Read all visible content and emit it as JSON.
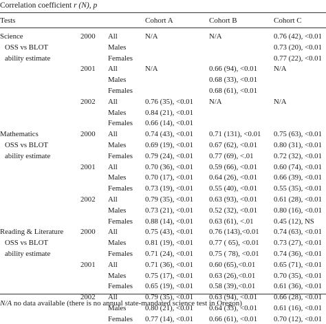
{
  "caption": {
    "prefix": "Correlation coefficient ",
    "symbols": "r (N), p"
  },
  "header": {
    "tests": "Tests",
    "cohort_a": "Cohort A",
    "cohort_b": "Cohort B",
    "cohort_c": "Cohort C"
  },
  "subjects": [
    {
      "lines": [
        "Science",
        "OSS vs BLOT",
        "ability estimate"
      ],
      "years": [
        {
          "year": "2000",
          "rows": [
            {
              "group": "All",
              "a": "N/A",
              "b": "N/A",
              "c": "0.76 (42), <0.01"
            },
            {
              "group": "Males",
              "a": "",
              "b": "",
              "c": "0.73 (20), <0.01"
            },
            {
              "group": "Females",
              "a": "",
              "b": "",
              "c": "0.77 (22), <0.01"
            }
          ]
        },
        {
          "year": "2001",
          "rows": [
            {
              "group": "All",
              "a": "N/A",
              "b": "0.66 (94), <0.01",
              "c": "N/A"
            },
            {
              "group": "Males",
              "a": "",
              "b": "0.68 (33), <0.01",
              "c": ""
            },
            {
              "group": "Females",
              "a": "",
              "b": "0.68 (61), <0.01",
              "c": ""
            }
          ]
        },
        {
          "year": "2002",
          "rows": [
            {
              "group": "All",
              "a": "0.76 (35), <0.01",
              "b": "N/A",
              "c": "N/A"
            },
            {
              "group": "Males",
              "a": "0.84 (21), <0.01",
              "b": "",
              "c": ""
            },
            {
              "group": "Females",
              "a": "0.66 (14), <0.01",
              "b": "",
              "c": ""
            }
          ]
        }
      ]
    },
    {
      "lines": [
        "Mathematics",
        "OSS vs BLOT",
        "ability estimate"
      ],
      "years": [
        {
          "year": "2000",
          "rows": [
            {
              "group": "All",
              "a": "0.74 (43), <0.01",
              "b": "0.71 (131), <0.01",
              "c": "0.75 (63), <0.01"
            },
            {
              "group": "Males",
              "a": "0.69 (19), <0.01",
              "b": "0.67 (62), <0.01",
              "c": "0.80 (31), <0.01"
            },
            {
              "group": "Females",
              "a": "0.79 (24), <0.01",
              "b": "0.77 (69), <.01",
              "c": "0.72 (32), <0.01"
            }
          ]
        },
        {
          "year": "2001",
          "rows": [
            {
              "group": "All",
              "a": "0.70 (36), <0.01",
              "b": "0.59 (66), <0.01",
              "c": "0.60 (74), <0.01"
            },
            {
              "group": "Males",
              "a": "0.70 (17), <0.01",
              "b": "0.64 (26), <0.01",
              "c": "0.66 (39), <0.01"
            },
            {
              "group": "Females",
              "a": "0.73 (19), <0.01",
              "b": "0.55 (40), <0.01",
              "c": "0.55 (35), <0.01"
            }
          ]
        },
        {
          "year": "2002",
          "rows": [
            {
              "group": "All",
              "a": "0.79 (35), <0.01",
              "b": "0.63 (93), <0.01",
              "c": "0.61 (28), <0.01"
            },
            {
              "group": "Males",
              "a": "0.73 (21), <0.01",
              "b": "0.52 (32), <0.01",
              "c": "0.80 (16), <0.01"
            },
            {
              "group": "Females",
              "a": "0.88 (14), <0.01",
              "b": "0.63 (61), <.01",
              "c": "0.45 (12), NS"
            }
          ]
        }
      ]
    },
    {
      "lines": [
        "Reading & Literature",
        "OSS vs BLOT",
        "ability estimate"
      ],
      "years": [
        {
          "year": "2000",
          "rows": [
            {
              "group": "All",
              "a": "0.75 (43), <0.01",
              "b": "0.76 (143),<0.01",
              "c": "0.74 (63), <0.01"
            },
            {
              "group": "Males",
              "a": "0.81 (19), <0.01",
              "b": "0.77 ( 65), <0.01",
              "c": "0.73 (27), <0.01"
            },
            {
              "group": "Females",
              "a": "0.71 (24), <0.01",
              "b": "0.75 ( 78), <0.01",
              "c": "0.74 (36), <0.01"
            }
          ]
        },
        {
          "year": "2001",
          "rows": [
            {
              "group": "All",
              "a": "0.71 (36), <0.01",
              "b": "0.60 (65),<0.01",
              "c": "0.65 (71), <0.01"
            },
            {
              "group": "Males",
              "a": "0.75 (17), <0.01",
              "b": "0.63 (26),<0.01",
              "c": "0.70 (35), <0.01"
            },
            {
              "group": "Females",
              "a": "0.65 (19), <0.01",
              "b": "0.58 (39),<0.01",
              "c": "0.61 (36), <0.01"
            }
          ]
        },
        {
          "year": "2002",
          "rows": [
            {
              "group": "All",
              "a": "0.79 (35), <0.01",
              "b": "0.63 (94), <0.01",
              "c": "0.66 (28), <0.01"
            },
            {
              "group": "Males",
              "a": "0.80 (21), <0.01",
              "b": "0.64 (33), <0.01",
              "c": "0.61 (16), <0.01"
            },
            {
              "group": "Females",
              "a": "0.77 (14), <0.01",
              "b": "0.66 (61), <0.01",
              "c": "0.70 (12), <0.01"
            }
          ]
        }
      ]
    }
  ],
  "footnote": {
    "term": "N/A",
    "text": " no data available (there is no annual state-mandated science test in Oregon)"
  }
}
